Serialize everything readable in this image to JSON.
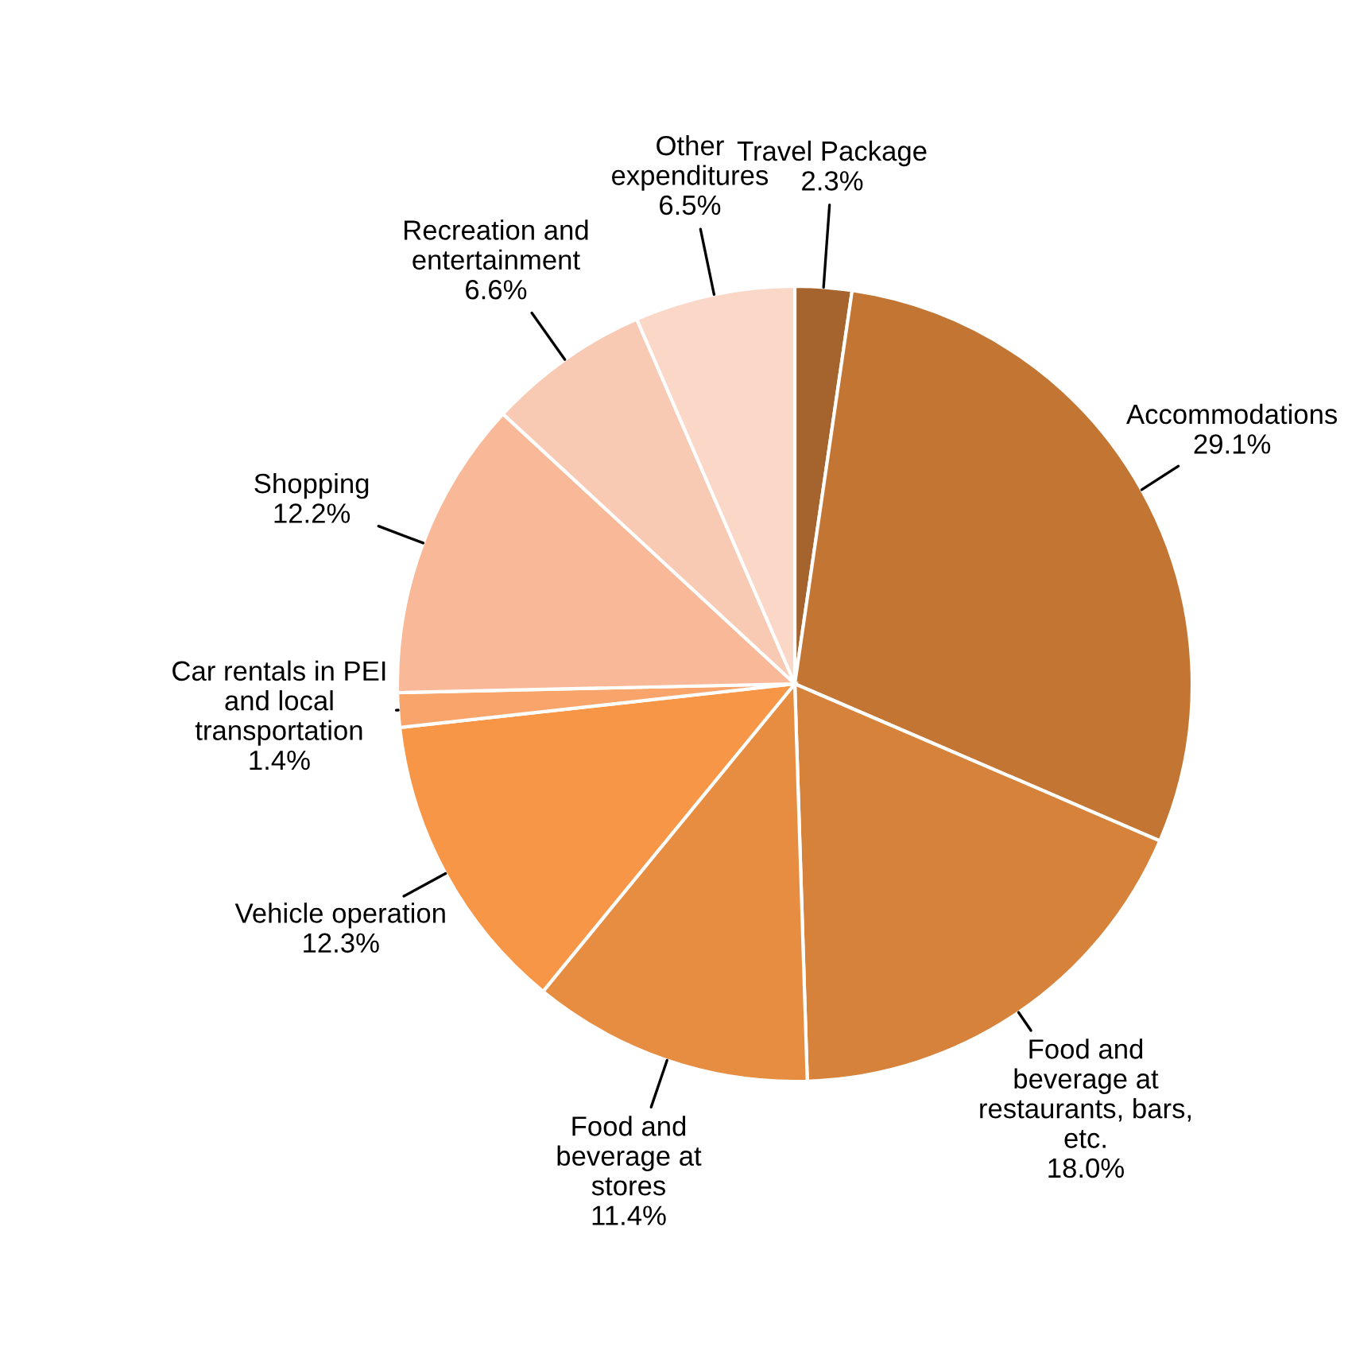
{
  "chart_data": {
    "type": "pie",
    "categories": [
      "Travel Package",
      "Accommodations",
      "Food and\nbeverage at\nrestaurants, bars,\netc.",
      "Food and\nbeverage at\nstores",
      "Vehicle operation",
      "Car rentals in PEI\nand local\ntransportation",
      "Shopping",
      "Recreation and\nentertainment",
      "Other\nexpenditures"
    ],
    "values": [
      2.3,
      29.1,
      18.0,
      11.4,
      12.3,
      1.4,
      12.2,
      6.6,
      6.5
    ],
    "value_labels": [
      "2.3%",
      "29.1%",
      "18.0%",
      "11.4%",
      "12.3%",
      "1.4%",
      "12.2%",
      "6.6%",
      "6.5%"
    ],
    "colors": [
      "#a5632e",
      "#c37534",
      "#d6823b",
      "#e68d42",
      "#f79646",
      "#f8a46a",
      "#f9b897",
      "#f8c9b3",
      "#fbd7c8"
    ],
    "legend": false
  }
}
